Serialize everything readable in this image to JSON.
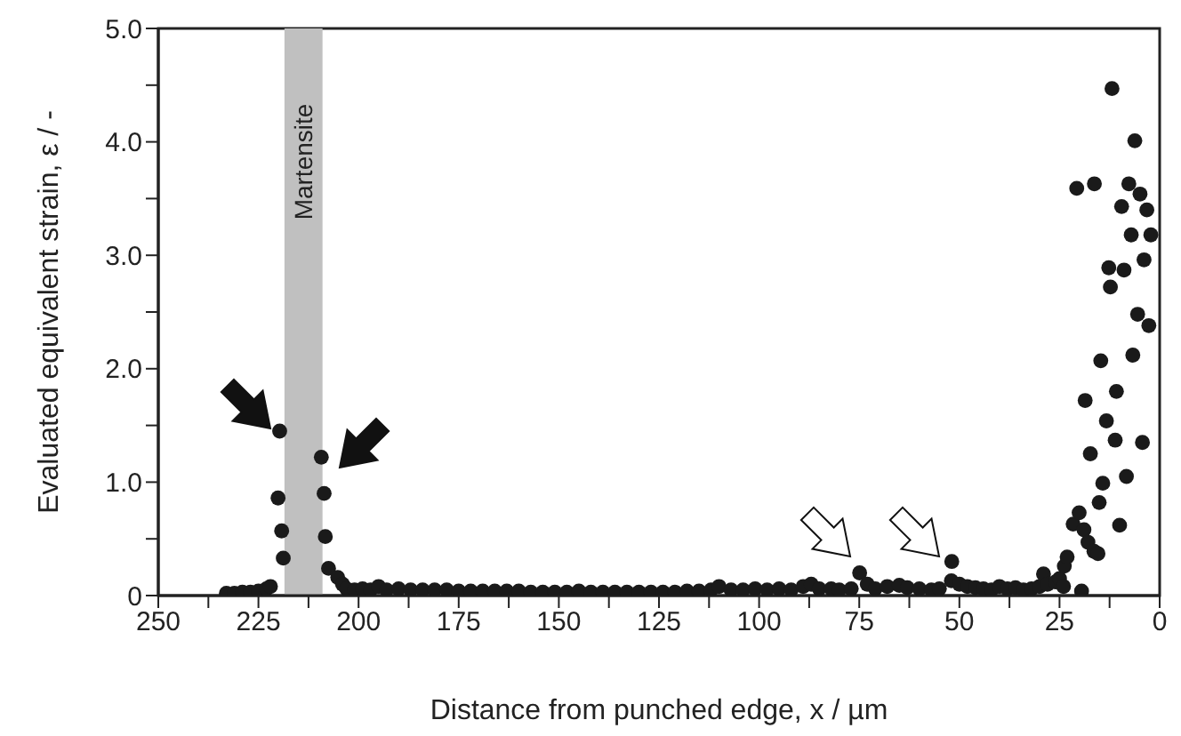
{
  "chart_data": {
    "type": "scatter",
    "xlabel": "Distance from punched edge, x / µm",
    "ylabel": "Evaluated equivalent strain, ε / -",
    "xlim": [
      250,
      0
    ],
    "xticks": [
      250,
      {
        "value": 237.5,
        "label": null
      },
      225,
      {
        "value": 212.5,
        "label": null
      },
      200,
      {
        "value": 187.5,
        "label": null
      },
      175,
      {
        "value": 162.5,
        "label": null
      },
      150,
      {
        "value": 137.5,
        "label": null
      },
      125,
      {
        "value": 112.5,
        "label": null
      },
      100,
      {
        "value": 87.5,
        "label": null
      },
      75,
      {
        "value": 62.5,
        "label": null
      },
      50,
      {
        "value": 37.5,
        "label": null
      },
      25,
      {
        "value": 12.5,
        "label": null
      },
      0
    ],
    "ylim": [
      0,
      5
    ],
    "yticks": [
      0,
      {
        "value": 0.5,
        "label": null
      },
      {
        "value": 1,
        "label": "1.0"
      },
      {
        "value": 1.5,
        "label": null
      },
      {
        "value": 2,
        "label": "2.0"
      },
      {
        "value": 2.5,
        "label": null
      },
      {
        "value": 3,
        "label": "3.0"
      },
      {
        "value": 3.5,
        "label": null
      },
      {
        "value": 4,
        "label": "4.0"
      },
      {
        "value": 4.5,
        "label": null
      },
      {
        "value": 5,
        "label": "5.0"
      }
    ],
    "grid": false,
    "marker": "circle",
    "bands": [
      {
        "axis": "x",
        "from": 218.5,
        "to": 209,
        "label": "Martensite",
        "color": "#c0c0c0"
      }
    ],
    "series": [
      {
        "color": "#1a1a1a",
        "x": [
          233,
          231,
          229,
          227,
          225,
          223,
          222,
          219.7,
          220.1,
          219.2,
          218.8,
          209.3,
          208.6,
          208.3,
          207.5,
          205.2,
          204,
          203,
          201,
          199,
          197,
          195,
          193,
          190,
          187,
          184,
          181,
          178,
          175,
          172,
          169,
          166,
          163,
          160,
          157,
          154,
          151,
          148,
          145,
          142,
          139,
          136,
          133,
          130,
          127,
          124,
          121,
          118,
          115,
          112,
          110,
          107,
          104,
          101,
          98,
          95,
          92,
          89,
          87,
          85,
          82,
          80,
          77,
          74.9,
          73,
          71,
          68,
          65,
          63,
          60,
          57,
          55,
          52,
          51.9,
          50,
          48,
          46,
          44,
          42,
          40,
          38,
          36,
          34,
          32,
          30,
          29,
          28,
          26,
          25,
          24,
          23.8,
          23.1,
          21.6,
          20.7,
          20.1,
          19.5,
          18.9,
          18.6,
          17.9,
          17.3,
          16.4,
          16.3,
          15.4,
          15.1,
          14.7,
          14.2,
          13.3,
          12.7,
          12.3,
          11.9,
          11.1,
          10.8,
          10,
          9.5,
          8.9,
          8.3,
          7.7,
          7.1,
          6.7,
          6.2,
          5.5,
          4.9,
          4.3,
          3.9,
          3.2,
          2.7,
          2.2
        ],
        "values": [
          0.02,
          0.02,
          0.03,
          0.03,
          0.04,
          0.06,
          0.08,
          1.45,
          0.86,
          0.57,
          0.33,
          1.22,
          0.9,
          0.52,
          0.24,
          0.16,
          0.1,
          0.06,
          0.05,
          0.06,
          0.05,
          0.08,
          0.05,
          0.06,
          0.05,
          0.05,
          0.05,
          0.05,
          0.04,
          0.04,
          0.04,
          0.04,
          0.04,
          0.04,
          0.03,
          0.03,
          0.03,
          0.03,
          0.04,
          0.03,
          0.03,
          0.03,
          0.03,
          0.03,
          0.03,
          0.03,
          0.03,
          0.04,
          0.04,
          0.05,
          0.08,
          0.05,
          0.05,
          0.06,
          0.05,
          0.06,
          0.05,
          0.08,
          0.1,
          0.06,
          0.06,
          0.05,
          0.06,
          0.2,
          0.1,
          0.06,
          0.08,
          0.09,
          0.07,
          0.06,
          0.05,
          0.06,
          0.13,
          0.3,
          0.1,
          0.08,
          0.07,
          0.06,
          0.05,
          0.08,
          0.06,
          0.07,
          0.05,
          0.06,
          0.08,
          0.19,
          0.1,
          0.12,
          0.15,
          0.08,
          0.26,
          0.34,
          0.63,
          3.59,
          0.73,
          0.04,
          0.58,
          1.72,
          0.47,
          1.25,
          0.39,
          3.63,
          0.37,
          0.82,
          2.07,
          0.99,
          1.54,
          2.89,
          2.72,
          4.47,
          1.37,
          1.8,
          0.62,
          3.43,
          2.87,
          1.05,
          3.63,
          3.18,
          2.12,
          4.01,
          2.48,
          3.54,
          1.35,
          2.96,
          3.4,
          2.38,
          3.18
        ]
      }
    ]
  }
}
